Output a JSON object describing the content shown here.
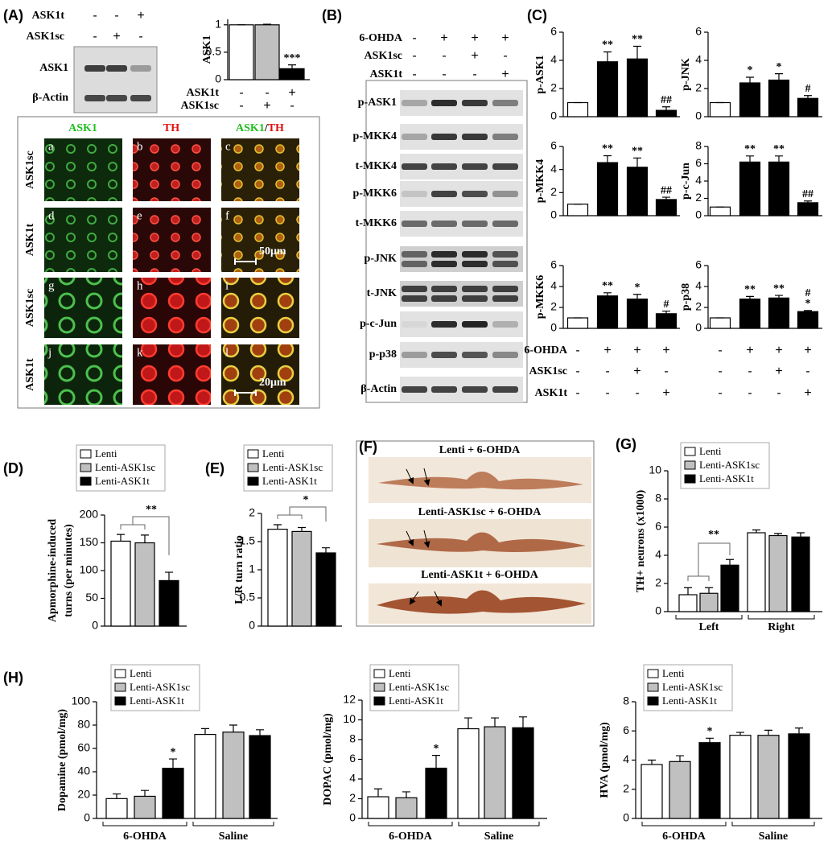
{
  "panel_labels": [
    "(A)",
    "(B)",
    "(C)",
    "(D)",
    "(E)",
    "(F)",
    "(G)",
    "(H)"
  ],
  "panel_A_blot": {
    "conditions": [
      {
        "label": "ASK1t",
        "signs": [
          "-",
          "-",
          "+"
        ]
      },
      {
        "label": "ASK1sc",
        "signs": [
          "-",
          "+",
          "-"
        ]
      }
    ],
    "rows": [
      "ASK1",
      "β-Actin"
    ]
  },
  "micrographs": {
    "headers": [
      [
        {
          "text": "ASK1",
          "color": "#1fbf1f"
        }
      ],
      [
        {
          "text": "TH",
          "color": "#e01010"
        }
      ],
      [
        {
          "text": "ASK1",
          "color": "#1fbf1f"
        },
        {
          "text": "/",
          "color": "#000000"
        },
        {
          "text": "TH",
          "color": "#e01010"
        }
      ]
    ],
    "row_labels": [
      "ASK1sc",
      "ASK1t",
      "ASK1sc",
      "ASK1t"
    ],
    "panels": [
      "a",
      "b",
      "c",
      "d",
      "e",
      "f",
      "g",
      "h",
      "i",
      "j",
      "k",
      "l"
    ],
    "scale_bars": [
      "50μm",
      "20μm"
    ]
  },
  "panel_B_blot": {
    "conditions": [
      {
        "label": "6-OHDA",
        "signs": [
          "-",
          "+",
          "+",
          "+"
        ]
      },
      {
        "label": "ASK1sc",
        "signs": [
          "-",
          "-",
          "+",
          "-"
        ]
      },
      {
        "label": "ASK1t",
        "signs": [
          "-",
          "-",
          "-",
          "+"
        ]
      }
    ],
    "rows": [
      "p-ASK1",
      "p-MKK4",
      "t-MKK4",
      "p-MKK6",
      "t-MKK6",
      "p-JNK",
      "t-JNK",
      "p-c-Jun",
      "p-p38",
      "β-Actin"
    ]
  },
  "panel_C_conditions": [
    {
      "label": "6-OHDA",
      "signs": [
        "-",
        "+",
        "+",
        "+"
      ]
    },
    {
      "label": "ASK1sc",
      "signs": [
        "-",
        "-",
        "+",
        "-"
      ]
    },
    {
      "label": "ASK1t",
      "signs": [
        "-",
        "-",
        "-",
        "+"
      ]
    }
  ],
  "panel_F": {
    "labels": [
      "Lenti + 6-OHDA",
      "Lenti-ASK1sc + 6-OHDA",
      "Lenti-ASK1t + 6-OHDA"
    ]
  },
  "chart_data": [
    {
      "type": "bar",
      "ylabel": "ASK1",
      "values": [
        1,
        1,
        0.2
      ],
      "errors": [
        0,
        0.01,
        0.07
      ],
      "colors": [
        "#ffffff",
        "#c0c0c0",
        "#000000"
      ],
      "annotations": [
        null,
        null,
        "***"
      ],
      "ylim": [
        0,
        1.1
      ],
      "yticks": [
        0,
        0.5,
        1
      ],
      "conditions": [
        {
          "label": "ASK1t",
          "signs": [
            "-",
            "-",
            "+"
          ]
        },
        {
          "label": "ASK1sc",
          "signs": [
            "-",
            "+",
            "-"
          ]
        }
      ]
    },
    {
      "type": "bar",
      "ylabel": "p-ASK1",
      "values": [
        1,
        3.9,
        4.1,
        0.45
      ],
      "errors": [
        0,
        0.7,
        0.9,
        0.25
      ],
      "colors": [
        "#ffffff",
        "#000000",
        "#000000",
        "#000000"
      ],
      "annotations": [
        null,
        "**",
        "**",
        "##"
      ],
      "ylim": [
        0,
        6
      ],
      "yticks": [
        0,
        2,
        4,
        6
      ]
    },
    {
      "type": "bar",
      "ylabel": "p-JNK",
      "values": [
        1,
        2.4,
        2.6,
        1.3
      ],
      "errors": [
        0,
        0.4,
        0.45,
        0.2
      ],
      "colors": [
        "#ffffff",
        "#000000",
        "#000000",
        "#000000"
      ],
      "annotations": [
        null,
        "*",
        "*",
        "#"
      ],
      "ylim": [
        0,
        6
      ],
      "yticks": [
        0,
        2,
        4,
        6
      ]
    },
    {
      "type": "bar",
      "ylabel": "p-MKK4",
      "values": [
        1,
        4.6,
        4.2,
        1.4
      ],
      "errors": [
        0,
        0.6,
        0.8,
        0.2
      ],
      "colors": [
        "#ffffff",
        "#000000",
        "#000000",
        "#000000"
      ],
      "annotations": [
        null,
        "**",
        "**",
        "##"
      ],
      "ylim": [
        0,
        6
      ],
      "yticks": [
        0,
        2,
        4,
        6
      ]
    },
    {
      "type": "bar",
      "ylabel": "p-c-Jun",
      "values": [
        1,
        6.2,
        6.2,
        1.5
      ],
      "errors": [
        0,
        0.7,
        0.7,
        0.2
      ],
      "colors": [
        "#ffffff",
        "#000000",
        "#000000",
        "#000000"
      ],
      "annotations": [
        null,
        "**",
        "**",
        "##"
      ],
      "ylim": [
        0,
        8
      ],
      "yticks": [
        0,
        2,
        4,
        6,
        8
      ]
    },
    {
      "type": "bar",
      "ylabel": "p-MKK6",
      "values": [
        1,
        3.1,
        2.8,
        1.4
      ],
      "errors": [
        0,
        0.3,
        0.45,
        0.25
      ],
      "colors": [
        "#ffffff",
        "#000000",
        "#000000",
        "#000000"
      ],
      "annotations": [
        null,
        "**",
        "*",
        "#"
      ],
      "ylim": [
        0,
        6
      ],
      "yticks": [
        0,
        2,
        4,
        6
      ]
    },
    {
      "type": "bar",
      "ylabel": "p-p38",
      "values": [
        1,
        2.8,
        2.9,
        1.6
      ],
      "errors": [
        0,
        0.25,
        0.25,
        0.1
      ],
      "colors": [
        "#ffffff",
        "#000000",
        "#000000",
        "#000000"
      ],
      "annotations": [
        null,
        "**",
        "**",
        [
          "#",
          "*"
        ]
      ],
      "ylim": [
        0,
        6
      ],
      "yticks": [
        0,
        2,
        4,
        6
      ]
    },
    {
      "type": "bar",
      "ylabel": [
        "Apmorphine-induced",
        "turns (per minutes)"
      ],
      "significance": "**",
      "legend": "upper left",
      "series": [
        {
          "name": "Lenti",
          "color": "#ffffff",
          "values": [
            153
          ],
          "errors": [
            12
          ]
        },
        {
          "name": "Lenti-ASK1sc",
          "color": "#c0c0c0",
          "values": [
            150
          ],
          "errors": [
            14
          ]
        },
        {
          "name": "Lenti-ASK1t",
          "color": "#000000",
          "values": [
            82
          ],
          "errors": [
            15
          ]
        }
      ],
      "ylim": [
        0,
        200
      ],
      "yticks": [
        0,
        50,
        100,
        150,
        200
      ]
    },
    {
      "type": "bar",
      "ylabel": [
        "L/R turn ratio"
      ],
      "significance": "*",
      "legend": "upper left",
      "series": [
        {
          "name": "Lenti",
          "color": "#ffffff",
          "values": [
            1.72
          ],
          "errors": [
            0.08
          ]
        },
        {
          "name": "Lenti-ASK1sc",
          "color": "#c0c0c0",
          "values": [
            1.68
          ],
          "errors": [
            0.07
          ]
        },
        {
          "name": "Lenti-ASK1t",
          "color": "#000000",
          "values": [
            1.3
          ],
          "errors": [
            0.09
          ]
        }
      ],
      "ylim": [
        0,
        2
      ],
      "yticks": [
        0,
        0.5,
        1,
        1.5,
        2
      ]
    },
    {
      "type": "bar",
      "ylabel": [
        "TH+ neurons (x1000)"
      ],
      "significance": "**",
      "legend": "upper left",
      "categories": [
        "Left",
        "Right"
      ],
      "series": [
        {
          "name": "Lenti",
          "color": "#ffffff",
          "values": [
            1.2,
            5.6
          ],
          "errors": [
            0.5,
            0.2
          ]
        },
        {
          "name": "Lenti-ASK1sc",
          "color": "#c0c0c0",
          "values": [
            1.3,
            5.4
          ],
          "errors": [
            0.4,
            0.15
          ]
        },
        {
          "name": "Lenti-ASK1t",
          "color": "#000000",
          "values": [
            3.3,
            5.3
          ],
          "errors": [
            0.4,
            0.3
          ]
        }
      ],
      "ylim": [
        0,
        10
      ],
      "yticks": [
        0,
        2,
        4,
        6,
        8,
        10
      ]
    },
    {
      "type": "bar",
      "ylabel": [
        "Dopamine (pmol/mg)"
      ],
      "legend": "upper left",
      "categories": [
        "6-OHDA",
        "Saline"
      ],
      "series": [
        {
          "name": "Lenti",
          "color": "#ffffff",
          "values": [
            17,
            72
          ],
          "errors": [
            4,
            5
          ]
        },
        {
          "name": "Lenti-ASK1sc",
          "color": "#c0c0c0",
          "values": [
            19,
            74
          ],
          "errors": [
            5,
            6
          ]
        },
        {
          "name": "Lenti-ASK1t",
          "color": "#000000",
          "values": [
            43,
            71
          ],
          "errors": [
            8,
            5
          ],
          "annotations": [
            "*",
            null
          ]
        }
      ],
      "ylim": [
        0,
        100
      ],
      "yticks": [
        0,
        20,
        40,
        60,
        80,
        100
      ]
    },
    {
      "type": "bar",
      "ylabel": [
        "DOPAC (pmol/mg)"
      ],
      "legend": "upper left",
      "categories": [
        "6-OHDA",
        "Saline"
      ],
      "series": [
        {
          "name": "Lenti",
          "color": "#ffffff",
          "values": [
            2.2,
            9.1
          ],
          "errors": [
            0.8,
            1.1
          ]
        },
        {
          "name": "Lenti-ASK1sc",
          "color": "#c0c0c0",
          "values": [
            2.1,
            9.3
          ],
          "errors": [
            0.6,
            0.9
          ]
        },
        {
          "name": "Lenti-ASK1t",
          "color": "#000000",
          "values": [
            5.1,
            9.2
          ],
          "errors": [
            1.3,
            1.1
          ],
          "annotations": [
            "*",
            null
          ]
        }
      ],
      "ylim": [
        0,
        12
      ],
      "yticks": [
        0,
        2,
        4,
        6,
        8,
        10,
        12
      ]
    },
    {
      "type": "bar",
      "ylabel": [
        "HVA (pmol/mg)"
      ],
      "legend": "upper left",
      "categories": [
        "6-OHDA",
        "Saline"
      ],
      "series": [
        {
          "name": "Lenti",
          "color": "#ffffff",
          "values": [
            3.7,
            5.7
          ],
          "errors": [
            0.3,
            0.2
          ]
        },
        {
          "name": "Lenti-ASK1sc",
          "color": "#c0c0c0",
          "values": [
            3.9,
            5.7
          ],
          "errors": [
            0.4,
            0.35
          ]
        },
        {
          "name": "Lenti-ASK1t",
          "color": "#000000",
          "values": [
            5.2,
            5.8
          ],
          "errors": [
            0.3,
            0.4
          ],
          "annotations": [
            "*",
            null
          ]
        }
      ],
      "ylim": [
        0,
        8
      ],
      "yticks": [
        0,
        2,
        4,
        6,
        8
      ]
    }
  ]
}
